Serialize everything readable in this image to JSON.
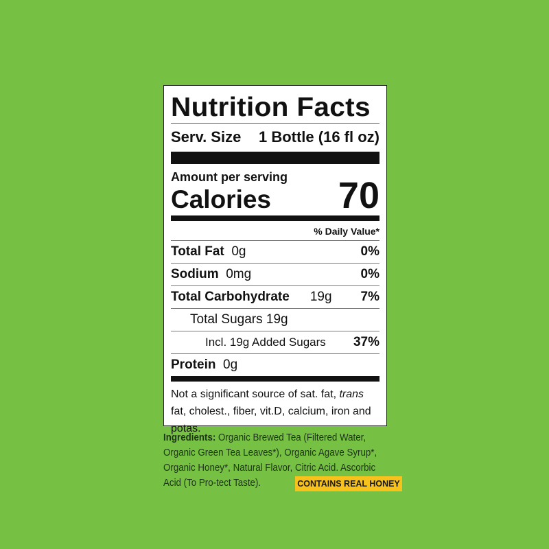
{
  "label": {
    "title": "Nutrition Facts",
    "serving_size_label": "Serv. Size",
    "serving_size_value": "1 Bottle (16 fl oz)",
    "amount_per_serving": "Amount per serving",
    "calories_label": "Calories",
    "calories_value": "70",
    "daily_value_header": "% Daily Value*",
    "rows": [
      {
        "name": "Total Fat",
        "amount": "0g",
        "dv": "0%"
      },
      {
        "name": "Sodium",
        "amount": "0mg",
        "dv": "0%"
      },
      {
        "name": "Total Carbohydrate",
        "amount": "19g",
        "dv": "7%"
      },
      {
        "name": "Total Sugars 19g",
        "amount": "",
        "dv": ""
      },
      {
        "name": "Incl. 19g Added Sugars",
        "amount": "",
        "dv": "37%"
      },
      {
        "name": "Protein",
        "amount": "0g",
        "dv": ""
      }
    ],
    "footnote_1": "Not a significant source of sat. fat, ",
    "footnote_trans": "trans",
    "footnote_2": " fat, cholest., fiber, vit.D, calcium, iron and potas."
  },
  "ingredients": {
    "heading": "Ingredients:",
    "text": " Organic Brewed Tea (Filtered Water, Organic Green Tea Leaves*), Organic Agave Syrup*, Organic Honey*, Natural Flavor, Citric Acid. Ascorbic Acid (To Pro-tect Taste)."
  },
  "badge": {
    "text": "CONTAINS REAL HONEY",
    "color": "#f7c21c"
  },
  "colors": {
    "background": "#76c043"
  }
}
